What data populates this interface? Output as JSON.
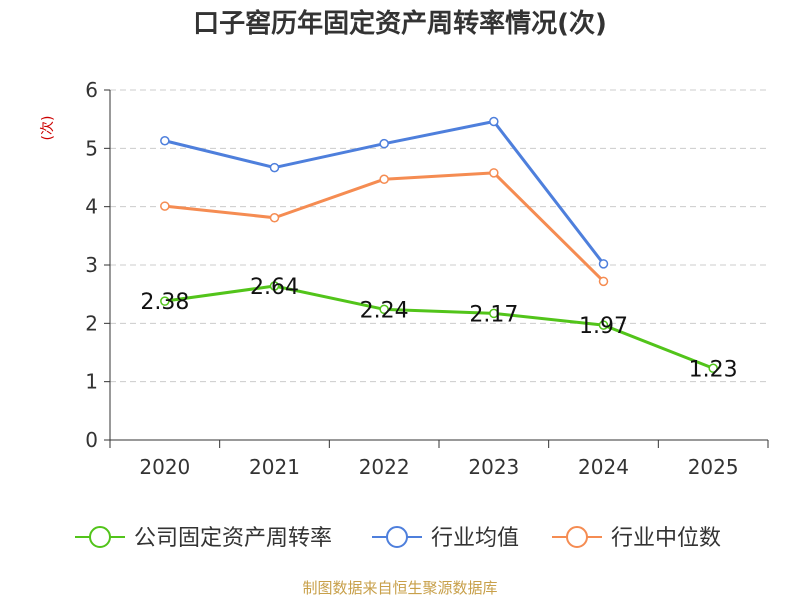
{
  "chart_data": {
    "type": "line",
    "title": "口子窖历年固定资产周转率情况(次)",
    "ylabel": "(次)",
    "xlabel": "",
    "categories": [
      "2020",
      "2021",
      "2022",
      "2023",
      "2024",
      "2025"
    ],
    "ylim": [
      0,
      6
    ],
    "yticks": [
      "0",
      "1",
      "2",
      "3",
      "4",
      "5",
      "6"
    ],
    "grid": true,
    "legend_position": "bottom",
    "series": [
      {
        "name": "公司固定资产周转率",
        "color": "#52c41a",
        "values": [
          2.38,
          2.64,
          2.24,
          2.17,
          1.97,
          1.23
        ],
        "data_labels": [
          "2.38",
          "2.64",
          "2.24",
          "2.17",
          "1.97",
          "1.23"
        ]
      },
      {
        "name": "行业均值",
        "color": "#4e7fdc",
        "values": [
          5.13,
          4.67,
          5.08,
          5.46,
          3.02,
          null
        ]
      },
      {
        "name": "行业中位数",
        "color": "#f58c52",
        "values": [
          4.01,
          3.81,
          4.47,
          4.58,
          2.72,
          null
        ]
      }
    ],
    "source": "制图数据来自恒生聚源数据库"
  }
}
